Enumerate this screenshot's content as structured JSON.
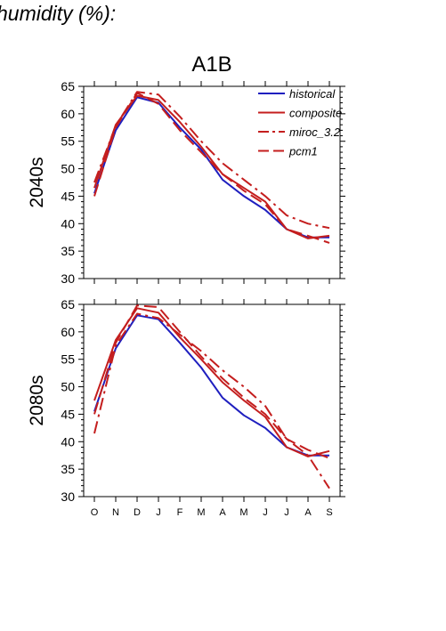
{
  "page": {
    "title": "humidity (%):"
  },
  "colors": {
    "historical": "#1f1fbf",
    "scenario": "#c41e1e",
    "axis": "#000000"
  },
  "chart_data": {
    "type": "line",
    "title": "A1B",
    "categories": [
      "O",
      "N",
      "D",
      "J",
      "F",
      "M",
      "A",
      "M",
      "J",
      "J",
      "A",
      "S"
    ],
    "ylim": [
      30,
      65
    ],
    "yticks": [
      30,
      35,
      40,
      45,
      50,
      55,
      60,
      65
    ],
    "legend": {
      "placement": "top-right",
      "entries": [
        {
          "name": "historical",
          "color": "#1f1fbf",
          "style": "solid"
        },
        {
          "name": "composite",
          "color": "#c41e1e",
          "style": "solid"
        },
        {
          "name": "miroc_3.2",
          "color": "#c41e1e",
          "style": "dash-dot"
        },
        {
          "name": "pcm1",
          "color": "#c41e1e",
          "style": "dash"
        }
      ]
    },
    "panels": [
      {
        "label": "2040s",
        "series": [
          {
            "name": "historical",
            "values": [
              45.5,
              57.0,
              63.0,
              62.0,
              57.5,
              53.5,
              48.0,
              45.0,
              42.5,
              39.0,
              37.5,
              37.5
            ]
          },
          {
            "name": "composite",
            "values": [
              46.5,
              58.0,
              63.3,
              62.5,
              58.5,
              54.0,
              49.0,
              46.5,
              44.0,
              39.0,
              37.3,
              37.8
            ]
          },
          {
            "name": "miroc_3.2",
            "values": [
              47.5,
              57.8,
              64.0,
              63.5,
              59.5,
              55.0,
              51.0,
              48.0,
              45.0,
              41.5,
              40.0,
              39.2
            ]
          },
          {
            "name": "pcm1",
            "values": [
              45.0,
              57.5,
              63.8,
              61.8,
              57.0,
              53.0,
              49.0,
              46.0,
              43.5,
              39.0,
              37.8,
              36.5
            ]
          }
        ]
      },
      {
        "label": "2080s",
        "series": [
          {
            "name": "historical",
            "values": [
              45.5,
              57.0,
              63.0,
              62.3,
              58.0,
              53.5,
              48.0,
              44.8,
              42.5,
              39.0,
              37.5,
              37.5
            ]
          },
          {
            "name": "composite",
            "values": [
              47.5,
              58.5,
              64.3,
              63.5,
              59.0,
              55.0,
              50.8,
              47.5,
              44.5,
              39.0,
              37.3,
              38.3
            ]
          },
          {
            "name": "miroc_3.2",
            "values": [
              41.5,
              57.5,
              63.3,
              62.5,
              59.5,
              56.5,
              53.0,
              50.0,
              46.5,
              40.5,
              37.5,
              31.5
            ]
          },
          {
            "name": "pcm1",
            "values": [
              45.0,
              58.0,
              64.8,
              64.5,
              60.0,
              55.5,
              51.5,
              48.0,
              45.0,
              40.5,
              38.5,
              37.0
            ]
          }
        ]
      }
    ]
  }
}
